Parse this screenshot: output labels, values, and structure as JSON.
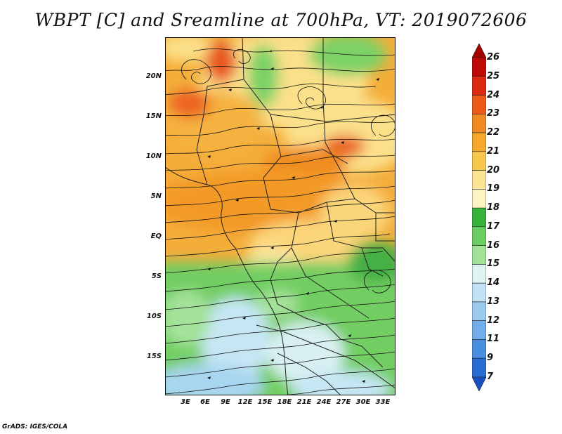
{
  "title": "WBPT [C] and Sreamline at 700hPa, VT: 2019072606",
  "credit": "GrADS: IGES/COLA",
  "lat_labels": [
    "20N",
    "15N",
    "10N",
    "5N",
    "EQ",
    "5S",
    "10S",
    "15S"
  ],
  "lon_labels": [
    "3E",
    "6E",
    "9E",
    "12E",
    "15E",
    "18E",
    "21E",
    "24E",
    "27E",
    "30E",
    "33E"
  ],
  "colorbar": {
    "labels": [
      "26",
      "25",
      "24",
      "23",
      "22",
      "21",
      "20",
      "19",
      "18",
      "17",
      "16",
      "15",
      "14",
      "13",
      "12",
      "11",
      "9",
      "7"
    ],
    "colors": [
      "#a50000",
      "#c00808",
      "#dc2a12",
      "#ec5a1a",
      "#f08a22",
      "#f4a82c",
      "#f8c84e",
      "#fbe496",
      "#fdf4c4",
      "#38b03c",
      "#6ccd62",
      "#a4e29a",
      "#dff3f0",
      "#c4e2f6",
      "#9ccbf2",
      "#72aeea",
      "#4a8ede",
      "#2a6cd0",
      "#1a4fc0"
    ]
  }
}
